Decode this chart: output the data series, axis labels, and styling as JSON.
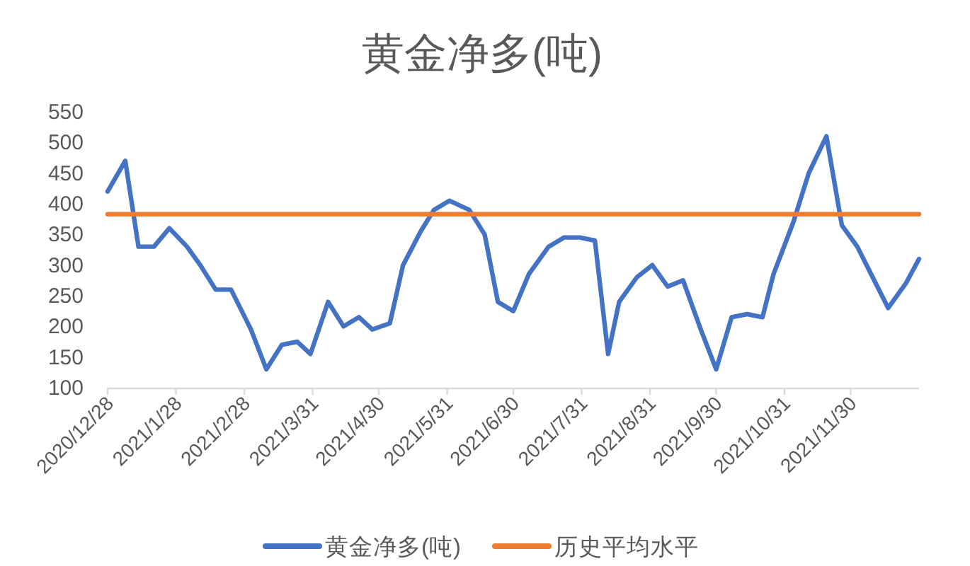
{
  "chart_data": {
    "type": "line",
    "title": "黄金净多(吨)",
    "series": [
      {
        "name": "黄金净多(吨)",
        "color": "#4472c4",
        "x": [
          "2020-12-28",
          "2021-01-05",
          "2021-01-11",
          "2021-01-18",
          "2021-01-25",
          "2021-02-02",
          "2021-02-08",
          "2021-02-15",
          "2021-02-22",
          "2021-03-03",
          "2021-03-10",
          "2021-03-17",
          "2021-03-24",
          "2021-03-30",
          "2021-04-07",
          "2021-04-14",
          "2021-04-21",
          "2021-04-27",
          "2021-05-05",
          "2021-05-11",
          "2021-05-19",
          "2021-05-25",
          "2021-06-01",
          "2021-06-10",
          "2021-06-17",
          "2021-06-23",
          "2021-06-30",
          "2021-07-07",
          "2021-07-16",
          "2021-07-23",
          "2021-07-30",
          "2021-08-06",
          "2021-08-12",
          "2021-08-17",
          "2021-08-25",
          "2021-09-01",
          "2021-09-08",
          "2021-09-15",
          "2021-09-23",
          "2021-09-30",
          "2021-10-07",
          "2021-10-14",
          "2021-10-21",
          "2021-10-26",
          "2021-11-04",
          "2021-11-11",
          "2021-11-19",
          "2021-11-26",
          "2021-12-03",
          "2021-12-10",
          "2021-12-17",
          "2021-12-25",
          "2021-12-31"
        ],
        "values": [
          420,
          470,
          330,
          330,
          360,
          330,
          300,
          260,
          260,
          195,
          130,
          170,
          175,
          155,
          240,
          200,
          215,
          195,
          205,
          300,
          355,
          390,
          405,
          390,
          350,
          240,
          225,
          285,
          330,
          345,
          345,
          340,
          155,
          240,
          280,
          300,
          265,
          275,
          195,
          130,
          215,
          220,
          215,
          285,
          370,
          450,
          510,
          365,
          330,
          280,
          230,
          270,
          310
        ]
      },
      {
        "name": "历史平均水平",
        "color": "#ed7d31",
        "x": [
          "2020-12-28",
          "2021-12-31"
        ],
        "values": [
          383,
          383
        ]
      }
    ],
    "xlim": [
      "2020-12-28",
      "2021-12-31"
    ],
    "xticks": [
      {
        "value": "2020-12-28",
        "label": "2020/12/28"
      },
      {
        "value": "2021-01-28",
        "label": "2021/1/28"
      },
      {
        "value": "2021-02-28",
        "label": "2021/2/28"
      },
      {
        "value": "2021-03-31",
        "label": "2021/3/31"
      },
      {
        "value": "2021-04-30",
        "label": "2021/4/30"
      },
      {
        "value": "2021-05-31",
        "label": "2021/5/31"
      },
      {
        "value": "2021-06-30",
        "label": "2021/6/30"
      },
      {
        "value": "2021-07-31",
        "label": "2021/7/31"
      },
      {
        "value": "2021-08-31",
        "label": "2021/8/31"
      },
      {
        "value": "2021-09-30",
        "label": "2021/9/30"
      },
      {
        "value": "2021-10-31",
        "label": "2021/10/31"
      },
      {
        "value": "2021-11-30",
        "label": "2021/11/30"
      }
    ],
    "ylim": [
      100,
      550
    ],
    "yticks": [
      100,
      150,
      200,
      250,
      300,
      350,
      400,
      450,
      500,
      550
    ],
    "grid": false,
    "legend": "bottom"
  }
}
